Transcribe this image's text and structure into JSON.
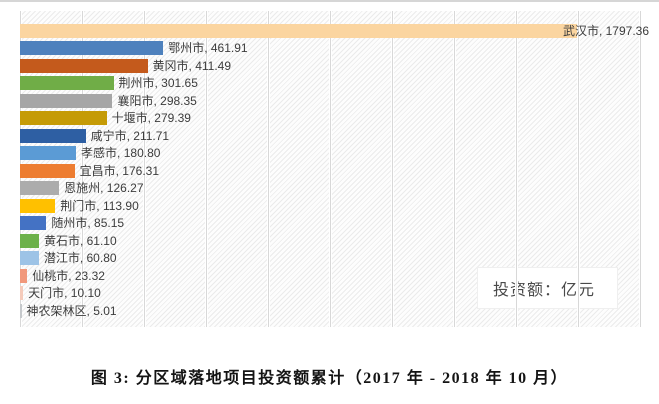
{
  "chart_data": {
    "type": "bar",
    "orientation": "horizontal",
    "title": "",
    "unit_annotation": "投资额：亿元",
    "xlim": [
      0,
      2000
    ],
    "gridline_interval": 200,
    "grid": true,
    "legend_position": "none",
    "categories": [
      "武汉市",
      "鄂州市",
      "黄冈市",
      "荆州市",
      "襄阳市",
      "十堰市",
      "咸宁市",
      "孝感市",
      "宜昌市",
      "恩施州",
      "荆门市",
      "随州市",
      "黄石市",
      "潜江市",
      "仙桃市",
      "天门市",
      "神农架林区"
    ],
    "values": [
      1797.36,
      461.91,
      411.49,
      301.65,
      298.35,
      279.39,
      211.71,
      180.8,
      176.31,
      126.27,
      113.9,
      85.15,
      61.1,
      60.8,
      23.32,
      10.1,
      5.01
    ],
    "display_labels": [
      "武汉市, 1797.36",
      "鄂州市, 461.91",
      "黄冈市, 411.49",
      "荆州市, 301.65",
      "襄阳市, 298.35",
      "十堰市, 279.39",
      "咸宁市, 211.71",
      "孝感市, 180.80",
      "宜昌市, 176.31",
      "恩施州, 126.27",
      "荆门市, 113.90",
      "随州市, 85.15",
      "黄石市, 61.10",
      "潜江市, 60.80",
      "仙桃市, 23.32",
      "天门市, 10.10",
      "神农架林区, 5.01"
    ],
    "bar_colors": [
      "#FBD5A0",
      "#4E81BD",
      "#C45A1C",
      "#70AD47",
      "#A6A6A6",
      "#C59B06",
      "#2E5FA3",
      "#5B9BD5",
      "#ED7D31",
      "#ACACAC",
      "#FFC000",
      "#4472C4",
      "#6CB14A",
      "#9DC3E6",
      "#F1987B",
      "#F5CBBB",
      "#C6C9CC"
    ],
    "label_text_color": "#3c3c3c",
    "gridline_color": "#d8d8d8"
  },
  "caption": {
    "text": "图 3: 分区域落地项目投资额累计（2017 年 - 2018 年 10 月）"
  }
}
